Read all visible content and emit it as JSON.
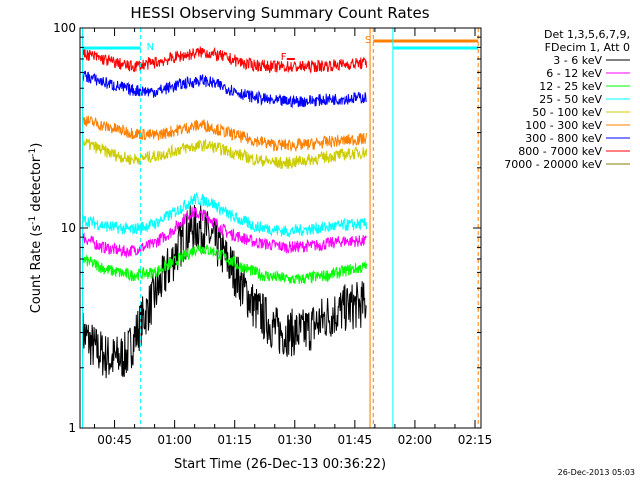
{
  "chart_data": {
    "type": "line",
    "title": "HESSI Observing Summary Count Rates",
    "xlabel": "Start Time (26-Dec-13 00:36:22)",
    "ylabel_main": "Count Rate (s",
    "ylabel_sup1": "-1",
    "ylabel_mid": " detector",
    "ylabel_sup2": "-1",
    "ylabel_end": ")",
    "yscale": "log",
    "ylim": [
      1,
      100
    ],
    "xlim_minutes": [
      36.37,
      136.5
    ],
    "x_ticks": [
      {
        "minute": 45,
        "label": "00:45"
      },
      {
        "minute": 60,
        "label": "01:00"
      },
      {
        "minute": 75,
        "label": "01:15"
      },
      {
        "minute": 90,
        "label": "01:30"
      },
      {
        "minute": 105,
        "label": "01:45"
      },
      {
        "minute": 120,
        "label": "02:00"
      },
      {
        "minute": 135,
        "label": "02:15"
      }
    ],
    "y_ticks": [
      {
        "value": 1,
        "label": "1"
      },
      {
        "value": 10,
        "label": "10"
      },
      {
        "value": 100,
        "label": "100"
      }
    ],
    "legend_header": [
      "Det 1,3,5,6,7,9,",
      "FDecim 1, Att 0"
    ],
    "series": [
      {
        "name": "3 - 6 keV",
        "color": "#000000",
        "values": [
          [
            37,
            3
          ],
          [
            40,
            2.5
          ],
          [
            44,
            2.2
          ],
          [
            48,
            2.3
          ],
          [
            52,
            3.5
          ],
          [
            57,
            5.5
          ],
          [
            61,
            8
          ],
          [
            64,
            10
          ],
          [
            67,
            10
          ],
          [
            71,
            8
          ],
          [
            75,
            6
          ],
          [
            80,
            4
          ],
          [
            86,
            3
          ],
          [
            92,
            3
          ],
          [
            98,
            3.6
          ],
          [
            103,
            4
          ],
          [
            108,
            4.2
          ]
        ]
      },
      {
        "name": "6 - 12 keV",
        "color": "#ff00ff",
        "values": [
          [
            37,
            9
          ],
          [
            42,
            8
          ],
          [
            48,
            7.6
          ],
          [
            54,
            8.2
          ],
          [
            59,
            9.5
          ],
          [
            64,
            12
          ],
          [
            68,
            11.5
          ],
          [
            73,
            9.5
          ],
          [
            80,
            8.5
          ],
          [
            88,
            8
          ],
          [
            96,
            8.2
          ],
          [
            102,
            8.6
          ],
          [
            108,
            8.6
          ]
        ]
      },
      {
        "name": "12 - 25 keV",
        "color": "#00ff00",
        "values": [
          [
            37,
            7
          ],
          [
            43,
            6.2
          ],
          [
            49,
            5.8
          ],
          [
            55,
            6
          ],
          [
            60,
            6.8
          ],
          [
            66,
            8
          ],
          [
            70,
            7.6
          ],
          [
            76,
            6.5
          ],
          [
            82,
            5.8
          ],
          [
            90,
            5.5
          ],
          [
            98,
            5.8
          ],
          [
            104,
            6.2
          ],
          [
            108,
            6.4
          ]
        ]
      },
      {
        "name": "25 - 50 keV",
        "color": "#00ffff",
        "values": [
          [
            37,
            11
          ],
          [
            43,
            10.2
          ],
          [
            49,
            9.8
          ],
          [
            55,
            10.5
          ],
          [
            60,
            12
          ],
          [
            65,
            14
          ],
          [
            69,
            13.5
          ],
          [
            74,
            11.5
          ],
          [
            80,
            10.2
          ],
          [
            88,
            9.6
          ],
          [
            96,
            10
          ],
          [
            102,
            10.3
          ],
          [
            108,
            10.5
          ]
        ]
      },
      {
        "name": "50 - 100 keV",
        "color": "#cccc00",
        "values": [
          [
            37,
            27
          ],
          [
            43,
            24
          ],
          [
            49,
            22
          ],
          [
            56,
            23
          ],
          [
            62,
            25
          ],
          [
            68,
            26
          ],
          [
            74,
            24
          ],
          [
            80,
            22
          ],
          [
            87,
            21
          ],
          [
            94,
            22
          ],
          [
            100,
            23
          ],
          [
            108,
            24
          ]
        ]
      },
      {
        "name": "100 - 300 keV",
        "color": "#ff8000",
        "values": [
          [
            37,
            35
          ],
          [
            43,
            32
          ],
          [
            49,
            30
          ],
          [
            55,
            29
          ],
          [
            61,
            31
          ],
          [
            67,
            33
          ],
          [
            72,
            30.5
          ],
          [
            78,
            28
          ],
          [
            85,
            26
          ],
          [
            92,
            26
          ],
          [
            99,
            27
          ],
          [
            108,
            28
          ]
        ]
      },
      {
        "name": "300 - 800 keV",
        "color": "#0000ff",
        "values": [
          [
            37,
            58
          ],
          [
            43,
            53
          ],
          [
            49,
            49
          ],
          [
            55,
            48
          ],
          [
            61,
            52
          ],
          [
            67,
            55
          ],
          [
            72,
            51
          ],
          [
            78,
            46
          ],
          [
            85,
            43
          ],
          [
            92,
            43
          ],
          [
            99,
            44
          ],
          [
            108,
            45
          ]
        ]
      },
      {
        "name": "800 - 7000 keV",
        "color": "#ff0000",
        "values": [
          [
            37,
            75
          ],
          [
            43,
            69
          ],
          [
            49,
            64
          ],
          [
            55,
            67
          ],
          [
            61,
            72
          ],
          [
            67,
            76
          ],
          [
            72,
            72
          ],
          [
            78,
            66
          ],
          [
            85,
            64
          ],
          [
            92,
            64
          ],
          [
            99,
            65
          ],
          [
            108,
            67
          ]
        ]
      },
      {
        "name": "7000 - 20000 keV",
        "color": "#808000",
        "values": []
      }
    ],
    "flags": [
      {
        "label": "N",
        "color": "#00ffff",
        "minute": 51.5
      },
      {
        "label": "F",
        "color": "#ff0000",
        "minute": 88
      },
      {
        "label": "S",
        "color": "#ff8000",
        "minute": 109
      }
    ],
    "timestamp": "26-Dec-2013 05:03"
  }
}
